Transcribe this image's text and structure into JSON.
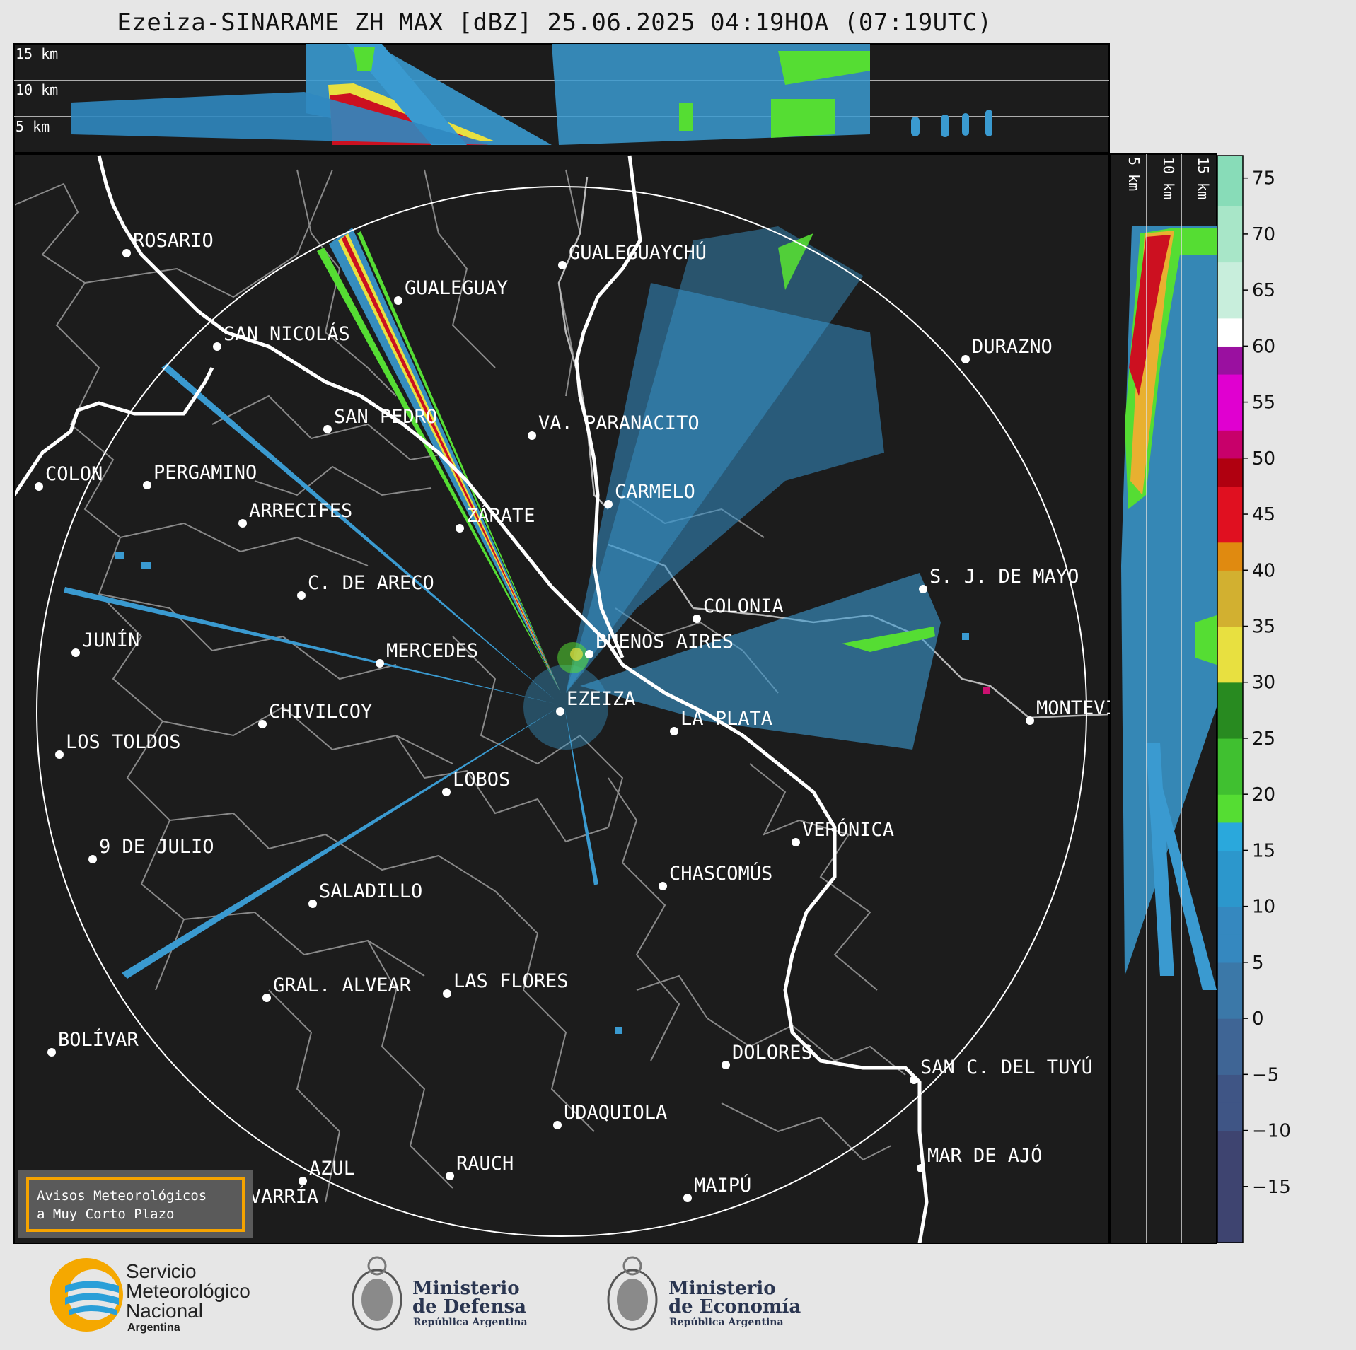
{
  "title": "Ezeiza-SINARAME ZH MAX [dBZ] 25.06.2025 04:19HOA (07:19UTC)",
  "top_panel": {
    "height_labels": [
      "15 km",
      "10 km",
      "5 km"
    ]
  },
  "side_panel": {
    "height_labels": [
      "5 km",
      "10 km",
      "15 km"
    ]
  },
  "colorbar": {
    "ticks": [
      "75",
      "70",
      "65",
      "60",
      "55",
      "50",
      "45",
      "40",
      "35",
      "30",
      "25",
      "20",
      "15",
      "10",
      "5",
      "0",
      "−5",
      "−10",
      "−15"
    ],
    "range": [
      -20,
      77
    ]
  },
  "cities": [
    {
      "name": "ROSARIO"
    },
    {
      "name": "GUALEGUAYCHÚ"
    },
    {
      "name": "GUALEGUAY"
    },
    {
      "name": "SAN NICOLÁS"
    },
    {
      "name": "DURAZNO"
    },
    {
      "name": "SAN PEDRO"
    },
    {
      "name": "VA. PARANACITO"
    },
    {
      "name": "COLON"
    },
    {
      "name": "PERGAMINO"
    },
    {
      "name": "CARMELO"
    },
    {
      "name": "ARRECIFES"
    },
    {
      "name": "ZÁRATE"
    },
    {
      "name": "C. DE ARECO"
    },
    {
      "name": "S. J. DE MAYO"
    },
    {
      "name": "COLONIA"
    },
    {
      "name": "BUENOS AIRES"
    },
    {
      "name": "JUNÍN"
    },
    {
      "name": "MERCEDES"
    },
    {
      "name": "EZEIZA"
    },
    {
      "name": "MONTEVIDEO"
    },
    {
      "name": "CHIVILCOY"
    },
    {
      "name": "LA PLATA"
    },
    {
      "name": "LOS TOLDOS"
    },
    {
      "name": "LOBOS"
    },
    {
      "name": "VERÓNICA"
    },
    {
      "name": "9 DE JULIO"
    },
    {
      "name": "CHASCOMÚS"
    },
    {
      "name": "SALADILLO"
    },
    {
      "name": "GRAL. ALVEAR"
    },
    {
      "name": "LAS FLORES"
    },
    {
      "name": "BOLÍVAR"
    },
    {
      "name": "DOLORES"
    },
    {
      "name": "SAN C. DEL TUYÚ"
    },
    {
      "name": "UDAQUIOLA"
    },
    {
      "name": "MAR DE AJÓ"
    },
    {
      "name": "AZUL"
    },
    {
      "name": "RAUCH"
    },
    {
      "name": "OLAVARRÍA"
    },
    {
      "name": "MAIPÚ"
    }
  ],
  "warning_box": {
    "line1": "Avisos Meteorológicos",
    "line2": "a Muy Corto Plazo"
  },
  "footer": {
    "smn": [
      "Servicio",
      "Meteorológico",
      "Nacional",
      "Argentina"
    ],
    "defensa": [
      "Ministerio",
      "de Defensa",
      "República Argentina"
    ],
    "economia": [
      "Ministerio",
      "de Economía",
      "República Argentina"
    ]
  },
  "colors": {
    "map_bg": "#1c1c1c",
    "boundary": "#8a8a8a",
    "coast": "#ffffff",
    "frame": "#000000"
  }
}
